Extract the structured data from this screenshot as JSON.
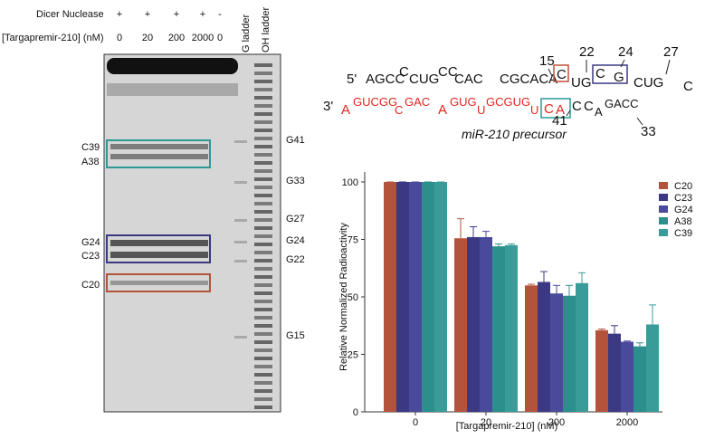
{
  "gel": {
    "row1_label": "Dicer Nuclease",
    "row1": [
      "+",
      "+",
      "+",
      "+",
      "-"
    ],
    "row2_label": "[Targapremir-210] (nM)",
    "row2": [
      0,
      20,
      200,
      2000,
      0
    ],
    "ladders": [
      "G ladder",
      "OH ladder"
    ],
    "left_labels": [
      "C39",
      "A38",
      "G24",
      "C23",
      "C20"
    ],
    "right_labels": [
      "G41",
      "G33",
      "G27",
      "G24",
      "G22",
      "G15"
    ]
  },
  "rna": {
    "five_prime": "5'",
    "three_prime": "3'",
    "top": [
      "AGCC",
      "C",
      "CUG",
      "CC",
      "CAC",
      "CGCACA",
      "C",
      "UG",
      "C",
      "G",
      "CUG",
      "C"
    ],
    "bottom": [
      "A",
      "GUCGG",
      "C",
      "GAC",
      "A",
      "GUG",
      "U",
      "GCGUG",
      "U",
      "C",
      "A",
      "C",
      "C",
      "A",
      "GACC"
    ],
    "numbers": [
      15,
      22,
      24,
      27,
      41,
      33
    ],
    "caption": "miR-210 precursor"
  },
  "chart_data": {
    "type": "bar",
    "ylabel": "Relative Normalized Radioactivity",
    "xlabel": "[Targapremir-210] (nM)",
    "categories": [
      "0",
      "20",
      "200",
      "2000"
    ],
    "ylim": [
      0,
      100
    ],
    "yticks": [
      0,
      25,
      50,
      75,
      100
    ],
    "series": [
      {
        "name": "C20",
        "color": "#b3533c",
        "values": [
          100,
          75.5,
          55,
          35.5
        ],
        "errors": [
          0,
          8.5,
          0.5,
          0.5
        ]
      },
      {
        "name": "C23",
        "color": "#3b3984",
        "values": [
          100,
          76,
          56.5,
          34
        ],
        "errors": [
          0,
          4.5,
          4.5,
          3.5
        ]
      },
      {
        "name": "G24",
        "color": "#4a4a9c",
        "values": [
          100,
          76,
          51.5,
          30.5
        ],
        "errors": [
          0,
          2.5,
          3.5,
          0.3
        ]
      },
      {
        "name": "A38",
        "color": "#2b8f8c",
        "values": [
          100,
          72,
          50.5,
          28.5
        ],
        "errors": [
          0,
          1,
          4.5,
          1.5
        ]
      },
      {
        "name": "C39",
        "color": "#3a9c98",
        "values": [
          100,
          72.5,
          56,
          38
        ],
        "errors": [
          0,
          0.5,
          4.5,
          8.5
        ]
      }
    ]
  }
}
